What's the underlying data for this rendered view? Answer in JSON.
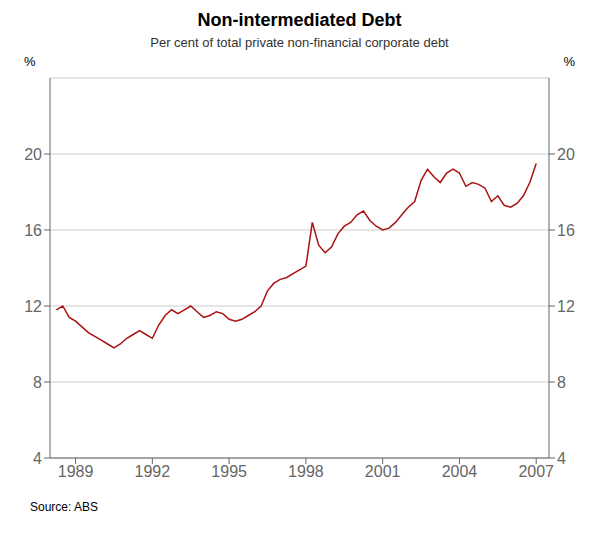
{
  "chart_data": {
    "type": "line",
    "title": "Non-intermediated Debt",
    "subtitle": "Per cent of total private non-financial corporate debt",
    "ylabel": "%",
    "y2label": "%",
    "annotations": [
      "Source: ABS"
    ],
    "color": "#aa1111",
    "grid": true,
    "xlim": [
      1988.0,
      2007.5
    ],
    "xticks": [
      1989,
      1992,
      1995,
      1998,
      2001,
      2004,
      2007
    ],
    "ylim": [
      4,
      24
    ],
    "yticks": [
      4,
      8,
      12,
      16,
      20
    ],
    "y2lim": [
      4,
      24
    ],
    "y2ticks": [
      4,
      8,
      12,
      16,
      20
    ],
    "x": [
      1988.25,
      1988.5,
      1988.75,
      1989.0,
      1989.25,
      1989.5,
      1989.75,
      1990.0,
      1990.25,
      1990.5,
      1990.75,
      1991.0,
      1991.25,
      1991.5,
      1991.75,
      1992.0,
      1992.25,
      1992.5,
      1992.75,
      1993.0,
      1993.25,
      1993.5,
      1993.75,
      1994.0,
      1994.25,
      1994.5,
      1994.75,
      1995.0,
      1995.25,
      1995.5,
      1995.75,
      1996.0,
      1996.25,
      1996.5,
      1996.75,
      1997.0,
      1997.25,
      1997.5,
      1997.75,
      1998.0,
      1998.25,
      1998.5,
      1998.75,
      1999.0,
      1999.25,
      1999.5,
      1999.75,
      2000.0,
      2000.25,
      2000.5,
      2000.75,
      2001.0,
      2001.25,
      2001.5,
      2001.75,
      2002.0,
      2002.25,
      2002.5,
      2002.75,
      2003.0,
      2003.25,
      2003.5,
      2003.75,
      2004.0,
      2004.25,
      2004.5,
      2004.75,
      2005.0,
      2005.25,
      2005.5,
      2005.75,
      2006.0,
      2006.25,
      2006.5,
      2006.75,
      2007.0
    ],
    "values": [
      11.8,
      12.0,
      11.4,
      11.2,
      10.9,
      10.6,
      10.4,
      10.2,
      10.0,
      9.8,
      10.0,
      10.3,
      10.5,
      10.7,
      10.5,
      10.3,
      11.0,
      11.5,
      11.8,
      11.6,
      11.8,
      12.0,
      11.7,
      11.4,
      11.5,
      11.7,
      11.6,
      11.3,
      11.2,
      11.3,
      11.5,
      11.7,
      12.0,
      12.8,
      13.2,
      13.4,
      13.5,
      13.7,
      13.9,
      14.1,
      16.4,
      15.2,
      14.8,
      15.1,
      15.8,
      16.2,
      16.4,
      16.8,
      17.0,
      16.5,
      16.2,
      16.0,
      16.1,
      16.4,
      16.8,
      17.2,
      17.5,
      18.6,
      19.2,
      18.8,
      18.5,
      19.0,
      19.2,
      19.0,
      18.3,
      18.5,
      18.4,
      18.2,
      17.5,
      17.8,
      17.3,
      17.2,
      17.4,
      17.8,
      18.5,
      19.5
    ]
  }
}
